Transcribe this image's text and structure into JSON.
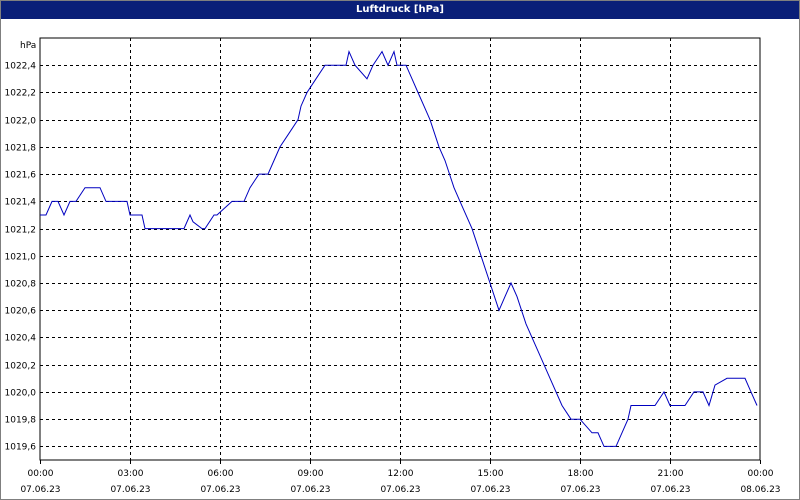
{
  "window": {
    "title": "Luftdruck [hPa]"
  },
  "chart_data": {
    "type": "line",
    "title": "Luftdruck [hPa]",
    "ylabel": "hPa",
    "xlabel": "",
    "ylim": [
      1019.5,
      1022.6
    ],
    "xlim": [
      0,
      24
    ],
    "grid": true,
    "legend": "none",
    "y_ticks": [
      1019.6,
      1019.8,
      1020.0,
      1020.2,
      1020.4,
      1020.6,
      1020.8,
      1021.0,
      1021.2,
      1021.4,
      1021.6,
      1021.8,
      1022.0,
      1022.2,
      1022.4
    ],
    "y_tick_labels": [
      "1019,6",
      "1019,8",
      "1020,0",
      "1020,2",
      "1020,4",
      "1020,6",
      "1020,8",
      "1021,0",
      "1021,2",
      "1021,4",
      "1021,6",
      "1021,8",
      "1022,0",
      "1022,2",
      "1022,4"
    ],
    "x_ticks": [
      {
        "x": 0,
        "time": "00:00",
        "date": "07.06.23"
      },
      {
        "x": 3,
        "time": "03:00",
        "date": "07.06.23"
      },
      {
        "x": 6,
        "time": "06:00",
        "date": "07.06.23"
      },
      {
        "x": 9,
        "time": "09:00",
        "date": "07.06.23"
      },
      {
        "x": 12,
        "time": "12:00",
        "date": "07.06.23"
      },
      {
        "x": 15,
        "time": "15:00",
        "date": "07.06.23"
      },
      {
        "x": 18,
        "time": "18:00",
        "date": "07.06.23"
      },
      {
        "x": 21,
        "time": "21:00",
        "date": "07.06.23"
      },
      {
        "x": 24,
        "time": "00:00",
        "date": "08.06.23"
      }
    ],
    "series": [
      {
        "color": "#0000c0",
        "x": [
          0.0,
          0.2,
          0.4,
          0.6,
          0.7,
          0.8,
          1.0,
          1.2,
          1.5,
          1.8,
          2.0,
          2.2,
          2.6,
          2.9,
          3.0,
          3.4,
          3.5,
          4.0,
          4.5,
          4.8,
          5.0,
          5.1,
          5.4,
          5.5,
          5.8,
          5.9,
          6.4,
          6.6,
          6.8,
          7.0,
          7.3,
          7.6,
          7.8,
          8.0,
          8.3,
          8.6,
          8.7,
          8.9,
          9.2,
          9.5,
          9.8,
          10.0,
          10.2,
          10.3,
          10.5,
          10.9,
          11.1,
          11.4,
          11.6,
          11.7,
          11.8,
          11.9,
          12.2,
          12.4,
          12.6,
          12.8,
          13.0,
          13.3,
          13.5,
          13.8,
          14.0,
          14.4,
          14.7,
          15.0,
          15.3,
          15.5,
          15.7,
          15.9,
          16.2,
          16.6,
          17.0,
          17.4,
          17.7,
          17.8,
          18.0,
          18.4,
          18.6,
          18.8,
          19.2,
          19.4,
          19.6,
          19.7,
          20.1,
          20.5,
          20.8,
          20.9,
          21.0,
          21.2,
          21.5,
          21.8,
          22.1,
          22.3,
          22.5,
          22.9,
          23.1,
          23.5,
          23.7,
          23.9
        ],
        "y": [
          1021.3,
          1021.3,
          1021.4,
          1021.4,
          1021.35,
          1021.3,
          1021.4,
          1021.4,
          1021.5,
          1021.5,
          1021.5,
          1021.4,
          1021.4,
          1021.4,
          1021.3,
          1021.3,
          1021.2,
          1021.2,
          1021.2,
          1021.2,
          1021.3,
          1021.25,
          1021.2,
          1021.2,
          1021.3,
          1021.3,
          1021.4,
          1021.4,
          1021.4,
          1021.5,
          1021.6,
          1021.6,
          1021.7,
          1021.8,
          1021.9,
          1022.0,
          1022.1,
          1022.2,
          1022.3,
          1022.4,
          1022.4,
          1022.4,
          1022.4,
          1022.5,
          1022.4,
          1022.3,
          1022.4,
          1022.5,
          1022.4,
          1022.45,
          1022.5,
          1022.4,
          1022.4,
          1022.3,
          1022.2,
          1022.1,
          1022.0,
          1021.8,
          1021.7,
          1021.5,
          1021.4,
          1021.2,
          1021.0,
          1020.8,
          1020.6,
          1020.7,
          1020.8,
          1020.7,
          1020.5,
          1020.3,
          1020.1,
          1019.9,
          1019.8,
          1019.8,
          1019.8,
          1019.7,
          1019.7,
          1019.6,
          1019.6,
          1019.7,
          1019.8,
          1019.9,
          1019.9,
          1019.9,
          1020.0,
          1019.95,
          1019.9,
          1019.9,
          1019.9,
          1020.0,
          1020.0,
          1019.9,
          1020.05,
          1020.1,
          1020.1,
          1020.1,
          1020.0,
          1019.9
        ]
      }
    ]
  }
}
